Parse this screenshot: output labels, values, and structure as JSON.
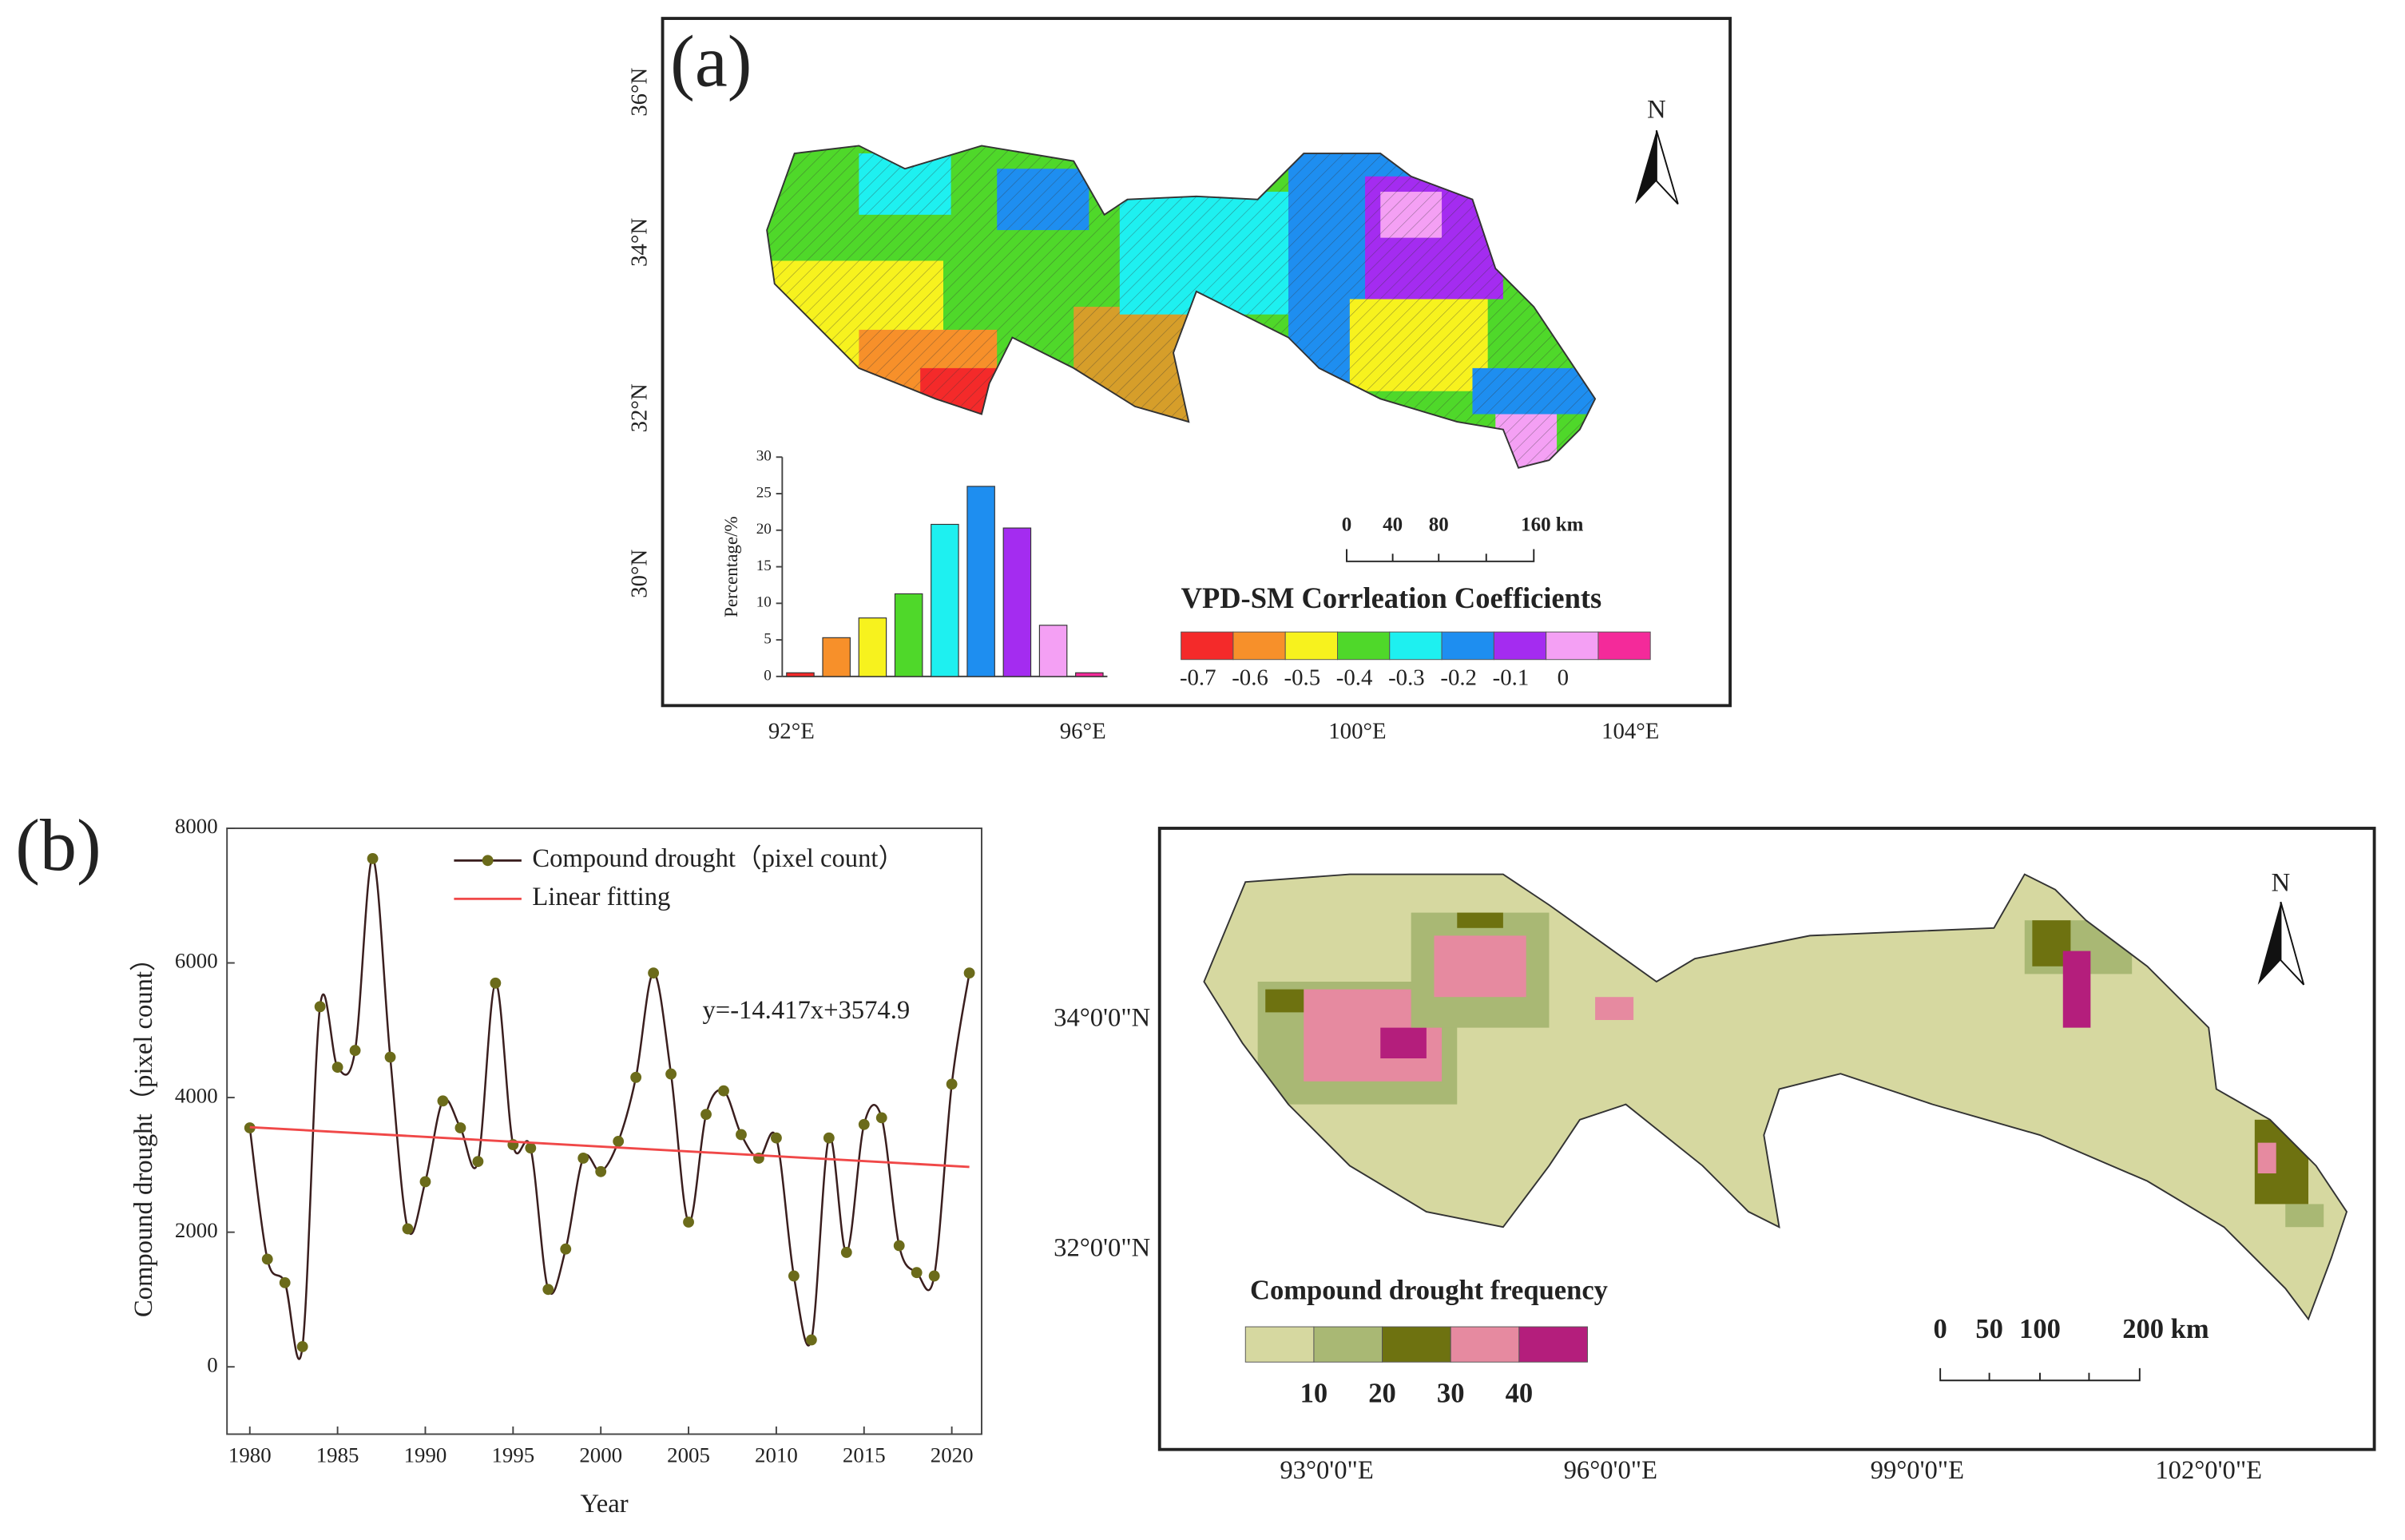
{
  "chart_data": [
    {
      "type": "bar",
      "ylabel": "Percentage/%",
      "categories": [
        null,
        null,
        null,
        null,
        null,
        null,
        null,
        null,
        null
      ],
      "values": [
        0.5,
        5.3,
        8,
        11.3,
        20.8,
        26,
        20.3,
        7,
        0.5
      ],
      "colors": [
        "#f42a2a",
        "#f7902a",
        "#f7f21e",
        "#4fd82a",
        "#1ef0f0",
        "#1e8ef0",
        "#a42cf0",
        "#f4a0f4",
        "#f42a9a"
      ],
      "ylim": [
        0,
        30
      ],
      "yticks": [
        0,
        5,
        10,
        15,
        20,
        25,
        30
      ]
    },
    {
      "type": "line",
      "ylabel": "Compound drought（pixel count）",
      "xlabel": "Year",
      "annotation": "y=-14.417x+3574.9",
      "x": [
        1980,
        1981,
        1982,
        1983,
        1984,
        1985,
        1986,
        1987,
        1988,
        1989,
        1990,
        1991,
        1992,
        1993,
        1994,
        1995,
        1996,
        1997,
        1998,
        1999,
        2000,
        2001,
        2002,
        2003,
        2004,
        2005,
        2006,
        2007,
        2008,
        2009,
        2010,
        2011,
        2012,
        2013,
        2014,
        2015,
        2016,
        2017,
        2018,
        2019,
        2020,
        2021
      ],
      "series": [
        {
          "name": "Compound drought（pixel count）",
          "color": "#3a1e1e",
          "marker_color": "#6b6b1a",
          "values": [
            3550,
            1600,
            1250,
            300,
            5350,
            4450,
            4700,
            7550,
            4600,
            2050,
            2750,
            3950,
            3550,
            3050,
            5700,
            3300,
            3250,
            1150,
            1750,
            3100,
            2900,
            3350,
            4300,
            5850,
            4350,
            2150,
            3750,
            4100,
            3450,
            3100,
            3400,
            1350,
            400,
            3400,
            1700,
            3600,
            3700,
            1800,
            1400,
            1350,
            4200,
            5850
          ]
        },
        {
          "name": "Linear fitting",
          "color": "#f04848",
          "x": [
            1980,
            2021
          ],
          "values": [
            3560,
            2970
          ]
        }
      ],
      "xlim": [
        1978.7,
        2021.7
      ],
      "xticks": [
        1980,
        1985,
        1990,
        1995,
        2000,
        2005,
        2010,
        2015,
        2020
      ],
      "ylim": [
        -1000,
        8000
      ],
      "yticks": [
        0,
        2000,
        4000,
        6000,
        8000
      ]
    }
  ],
  "map_a": {
    "panel_label": "(a)",
    "north": "N",
    "lat_labels": [
      "36°N",
      "34°N",
      "32°N",
      "30°N"
    ],
    "lon_labels": [
      "92°E",
      "96°E",
      "100°E",
      "104°E"
    ],
    "scale_labels": [
      "0",
      "40",
      "80",
      "160 km"
    ],
    "legend": {
      "title": "VPD-SM Corrleation Coefficients",
      "colors": [
        "#f42a2a",
        "#f7902a",
        "#f7f21e",
        "#4fd82a",
        "#1ef0f0",
        "#1e8ef0",
        "#a42cf0",
        "#f4a0f4",
        "#f42a9a"
      ],
      "labels": [
        "-0.7",
        "-0.6",
        "-0.5",
        "-0.4",
        "-0.3",
        "-0.2",
        "-0.1",
        "0"
      ]
    }
  },
  "map_b": {
    "panel_label": "(b)",
    "north": "N",
    "lat_labels": [
      "34°0'0\"N",
      "32°0'0\"N"
    ],
    "lon_labels": [
      "93°0'0\"E",
      "96°0'0\"E",
      "99°0'0\"E",
      "102°0'0\"E"
    ],
    "scale_labels": [
      "0",
      "50",
      "100",
      "200 km"
    ],
    "legend": {
      "title": "Compound drought frequency",
      "colors": [
        "#d6d8a0",
        "#a9b874",
        "#6e7210",
        "#e68aa0",
        "#b41e7c"
      ],
      "labels": [
        "10",
        "20",
        "30",
        "40"
      ]
    }
  }
}
